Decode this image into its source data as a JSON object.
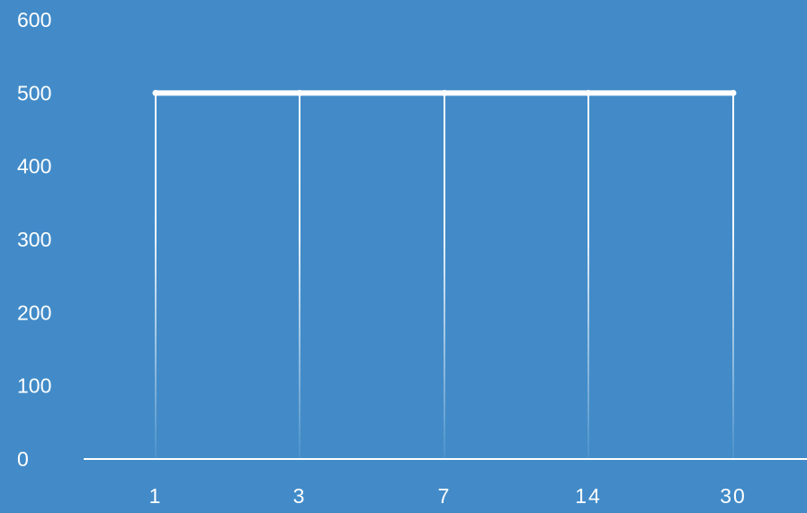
{
  "chart_data": {
    "type": "line",
    "title": "",
    "xlabel": "",
    "ylabel": "",
    "categories": [
      "1",
      "3",
      "7",
      "14",
      "30"
    ],
    "series": [
      {
        "values": [
          500,
          500,
          500,
          500,
          500
        ]
      }
    ],
    "y_ticks": [
      "0",
      "100",
      "200",
      "300",
      "400",
      "500",
      "600"
    ],
    "ylim": [
      0,
      600
    ],
    "grid": false,
    "drop_lines": true,
    "legend": "none",
    "colors": {
      "background": "#428bc8",
      "line": "#ffffff",
      "axis": "#ffffff",
      "text": "#ffffff"
    }
  }
}
